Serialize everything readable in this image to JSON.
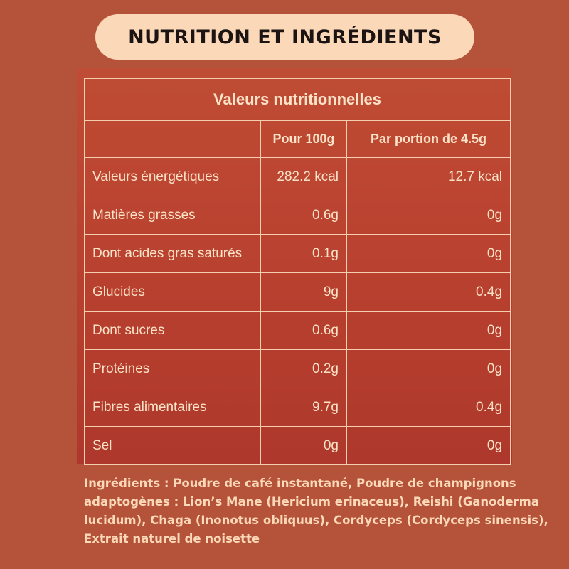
{
  "header": {
    "title": "NUTRITION ET INGRÉDIENTS"
  },
  "table": {
    "title": "Valeurs nutritionnelles",
    "columns": [
      "",
      "Pour 100g",
      "Par portion de 4.5g"
    ],
    "rows": [
      {
        "label": "Valeurs énergétiques",
        "per_100g": "282.2 kcal",
        "per_portion": "12.7 kcal"
      },
      {
        "label": "Matières grasses",
        "per_100g": "0.6g",
        "per_portion": "0g"
      },
      {
        "label": "Dont acides gras saturés",
        "per_100g": "0.1g",
        "per_portion": "0g"
      },
      {
        "label": "Glucides",
        "per_100g": "9g",
        "per_portion": "0.4g"
      },
      {
        "label": "Dont sucres",
        "per_100g": "0.6g",
        "per_portion": "0g"
      },
      {
        "label": "Protéines",
        "per_100g": "0.2g",
        "per_portion": "0g"
      },
      {
        "label": "Fibres alimentaires",
        "per_100g": "9.7g",
        "per_portion": "0.4g"
      },
      {
        "label": "Sel",
        "per_100g": "0g",
        "per_portion": "0g"
      }
    ]
  },
  "ingredients": {
    "text": "Ingrédients : Poudre de café instantané, Poudre de champignons adaptogènes : Lion’s Mane (Hericium erinaceus), Reishi (Ganoderma lucidum), Chaga (Inonotus obliquus), Cordyceps (Cordyceps sinensis), Extrait naturel de noisette"
  },
  "colors": {
    "background": "#b5533a",
    "panel": "#b8402f",
    "pill": "#fbd9b8",
    "text_light": "#fce3c8",
    "title_text": "#1c1412"
  }
}
